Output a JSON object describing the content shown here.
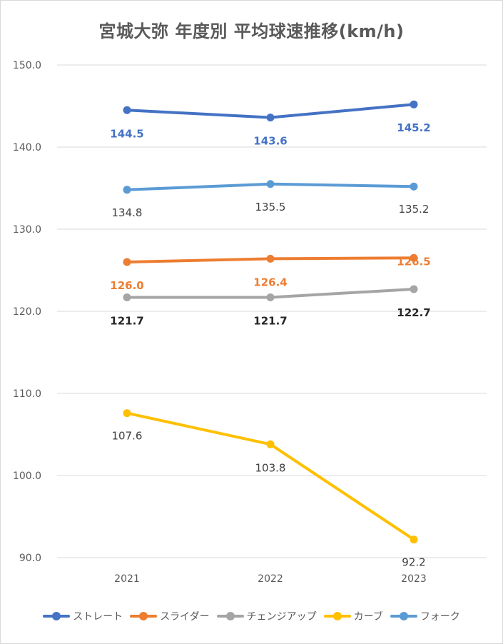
{
  "chart_data": {
    "type": "line",
    "title": "宮城大弥 年度別 平均球速推移(km/h)",
    "xlabel": "",
    "ylabel": "",
    "categories": [
      "2021",
      "2022",
      "2023"
    ],
    "ylim": [
      90,
      150
    ],
    "yticks": [
      "90.0",
      "100.0",
      "110.0",
      "120.0",
      "130.0",
      "140.0",
      "150.0"
    ],
    "grid": true,
    "legend_position": "bottom",
    "series": [
      {
        "name": "ストレート",
        "color": "#4472C4",
        "label_color": "#4472C4",
        "label_bold": true,
        "values": [
          144.5,
          143.6,
          145.2
        ],
        "labels": [
          "144.5",
          "143.6",
          "145.2"
        ]
      },
      {
        "name": "スライダー",
        "color": "#ED7D31",
        "label_color": "#ED7D31",
        "label_bold": true,
        "values": [
          126.0,
          126.4,
          126.5
        ],
        "labels": [
          "126.0",
          "126.4",
          "126.5"
        ]
      },
      {
        "name": "チェンジアップ",
        "color": "#A5A5A5",
        "label_color": "#262626",
        "label_bold": true,
        "values": [
          121.7,
          121.7,
          122.7
        ],
        "labels": [
          "121.7",
          "121.7",
          "122.7"
        ]
      },
      {
        "name": "カーブ",
        "color": "#FFC000",
        "label_color": "#404040",
        "label_bold": false,
        "values": [
          107.6,
          103.8,
          92.2
        ],
        "labels": [
          "107.6",
          "103.8",
          "92.2"
        ]
      },
      {
        "name": "フォーク",
        "color": "#5B9BD5",
        "label_color": "#404040",
        "label_bold": false,
        "values": [
          134.8,
          135.5,
          135.2
        ],
        "labels": [
          "134.8",
          "135.5",
          "135.2"
        ]
      }
    ]
  }
}
